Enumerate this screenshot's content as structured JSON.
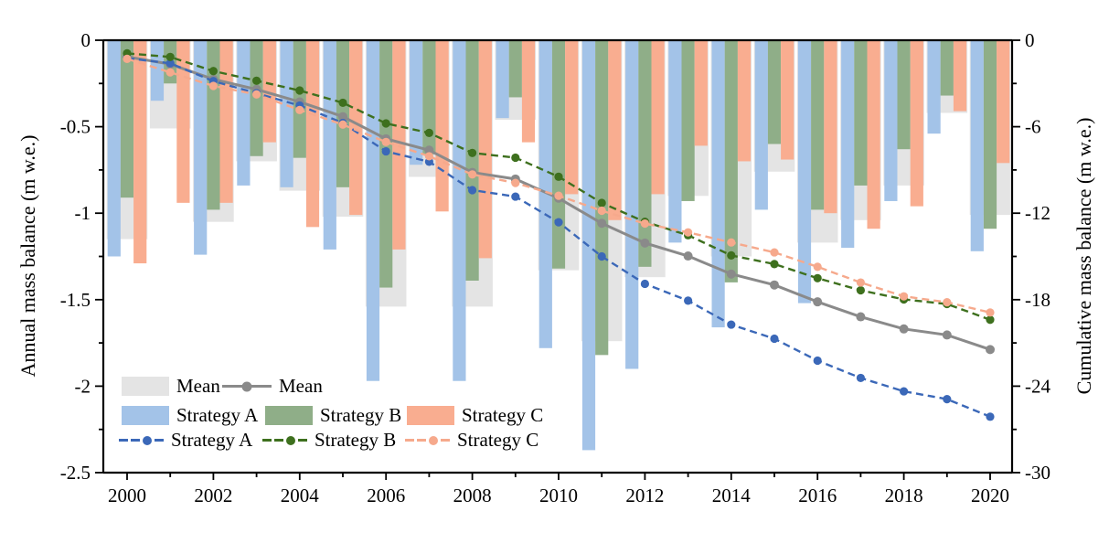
{
  "chart_data": {
    "type": "bar+line combo (grouped annual bars on left axis, cumulative marker lines on right axis)",
    "x": [
      2000,
      2001,
      2002,
      2003,
      2004,
      2005,
      2006,
      2007,
      2008,
      2009,
      2010,
      2011,
      2012,
      2013,
      2014,
      2015,
      2016,
      2017,
      2018,
      2019,
      2020
    ],
    "x_tick_labels": [
      "2000",
      "2002",
      "2004",
      "2006",
      "2008",
      "2010",
      "2012",
      "2014",
      "2016",
      "2018",
      "2020"
    ],
    "left_axis": {
      "label": "Annual mass balance (m w.e.)",
      "lim": [
        0,
        -2.5
      ],
      "tick_labels": [
        "0",
        "-0.5",
        "-1",
        "-1.5",
        "-2",
        "-2.5"
      ],
      "major_tick_step": 0.5,
      "minor_tick_step": 0.25
    },
    "right_axis": {
      "label": "Cumulative mass balance (m w.e.)",
      "lim": [
        0,
        -30
      ],
      "tick_labels": [
        "0",
        "-6",
        "-12",
        "-18",
        "-24",
        "-30"
      ],
      "major_tick_step": 6,
      "minor_tick_step": 3
    },
    "grid": "off",
    "legend_position": "inside lower-left",
    "bar_series": [
      {
        "name": "Mean",
        "color": "#E4E4E4",
        "role": "annual mass balance",
        "values": [
          -1.15,
          -0.51,
          -1.05,
          -0.7,
          -0.87,
          -1.02,
          -1.54,
          -0.79,
          -1.54,
          -0.46,
          -1.33,
          -1.74,
          -1.37,
          -0.9,
          -1.25,
          -0.76,
          -1.17,
          -1.04,
          -0.84,
          -0.42,
          -1.01
        ]
      },
      {
        "name": "Strategy A",
        "color": "#A3C3E8",
        "role": "annual mass balance",
        "values": [
          -1.25,
          -0.35,
          -1.24,
          -0.84,
          -0.85,
          -1.21,
          -1.97,
          -0.72,
          -1.97,
          -0.45,
          -1.78,
          -2.37,
          -1.9,
          -1.17,
          -1.66,
          -0.98,
          -1.52,
          -1.2,
          -0.93,
          -0.54,
          -1.22
        ]
      },
      {
        "name": "Strategy B",
        "color": "#8FAE88",
        "role": "annual mass balance",
        "values": [
          -0.91,
          -0.25,
          -0.98,
          -0.67,
          -0.68,
          -0.85,
          -1.43,
          -0.66,
          -1.39,
          -0.33,
          -1.32,
          -1.82,
          -1.31,
          -0.93,
          -1.4,
          -0.6,
          -0.98,
          -0.84,
          -0.63,
          -0.32,
          -1.09
        ]
      },
      {
        "name": "Strategy C",
        "color": "#F9AD90",
        "role": "annual mass balance",
        "values": [
          -1.29,
          -0.94,
          -0.94,
          -0.59,
          -1.08,
          -1.01,
          -1.21,
          -0.99,
          -1.26,
          -0.59,
          -0.89,
          -1.04,
          -0.89,
          -0.61,
          -0.7,
          -0.69,
          -1.0,
          -1.09,
          -0.96,
          -0.41,
          -0.71
        ]
      }
    ],
    "line_series": [
      {
        "name": "Mean",
        "color": "#8A8A8A",
        "style": "solid",
        "marker": "circle",
        "role": "cumulative mass balance",
        "values": [
          -1.15,
          -1.66,
          -2.71,
          -3.41,
          -4.28,
          -5.3,
          -6.84,
          -7.63,
          -9.17,
          -9.63,
          -10.96,
          -12.7,
          -14.07,
          -14.97,
          -16.22,
          -16.98,
          -18.15,
          -19.19,
          -20.03,
          -20.45,
          -21.46
        ]
      },
      {
        "name": "Strategy A",
        "color": "#3B68B8",
        "style": "dashed",
        "marker": "circle",
        "role": "cumulative mass balance",
        "values": [
          -1.25,
          -1.6,
          -2.84,
          -3.68,
          -4.53,
          -5.74,
          -7.71,
          -8.43,
          -10.4,
          -10.85,
          -12.63,
          -15.0,
          -16.9,
          -18.07,
          -19.73,
          -20.71,
          -22.23,
          -23.43,
          -24.36,
          -24.9,
          -26.12
        ]
      },
      {
        "name": "Strategy B",
        "color": "#3E701E",
        "style": "dashed",
        "marker": "circle",
        "role": "cumulative mass balance",
        "values": [
          -0.91,
          -1.16,
          -2.14,
          -2.81,
          -3.49,
          -4.34,
          -5.77,
          -6.43,
          -7.82,
          -8.15,
          -9.47,
          -11.29,
          -12.6,
          -13.53,
          -14.93,
          -15.53,
          -16.51,
          -17.35,
          -17.98,
          -18.3,
          -19.39
        ]
      },
      {
        "name": "Strategy C",
        "color": "#F6A98C",
        "style": "dashed",
        "marker": "circle",
        "role": "cumulative mass balance",
        "values": [
          -1.29,
          -2.23,
          -3.17,
          -3.76,
          -4.84,
          -5.85,
          -7.06,
          -8.05,
          -9.31,
          -9.9,
          -10.79,
          -11.83,
          -12.72,
          -13.33,
          -14.03,
          -14.72,
          -15.72,
          -16.81,
          -17.77,
          -18.18,
          -18.89
        ]
      }
    ],
    "legend": {
      "row1": [
        "Mean",
        "Mean"
      ],
      "row2": [
        "Strategy A",
        "Strategy B",
        "Strategy C"
      ],
      "row3": [
        "Strategy A",
        "Strategy B",
        "Strategy C"
      ]
    }
  }
}
